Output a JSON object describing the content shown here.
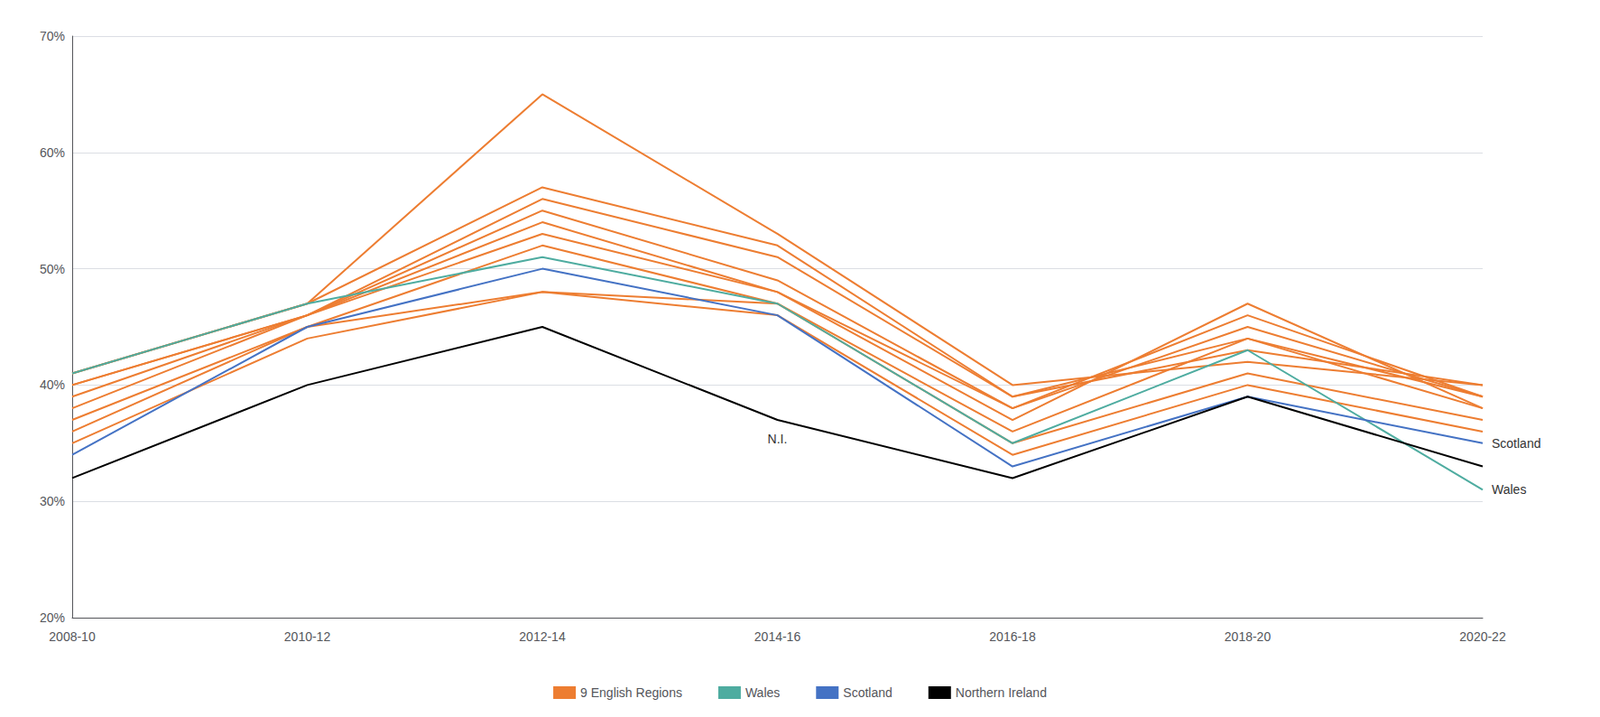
{
  "chart_data": {
    "type": "line",
    "categories": [
      "2008-10",
      "2010-12",
      "2012-14",
      "2014-16",
      "2016-18",
      "2018-20",
      "2020-22"
    ],
    "series": [
      {
        "name": "9 English Regions",
        "color": "#ED7D31",
        "values": [
          0.41,
          0.47,
          0.65,
          0.53,
          0.4,
          0.42,
          0.4
        ]
      },
      {
        "name": "9 English Regions",
        "color": "#ED7D31",
        "values": [
          0.41,
          0.47,
          0.57,
          0.52,
          0.39,
          0.43,
          0.4
        ]
      },
      {
        "name": "9 English Regions",
        "color": "#ED7D31",
        "values": [
          0.4,
          0.46,
          0.56,
          0.51,
          0.39,
          0.44,
          0.39
        ]
      },
      {
        "name": "9 English Regions",
        "color": "#ED7D31",
        "values": [
          0.4,
          0.46,
          0.55,
          0.49,
          0.38,
          0.45,
          0.39
        ]
      },
      {
        "name": "9 English Regions",
        "color": "#ED7D31",
        "values": [
          0.39,
          0.46,
          0.54,
          0.48,
          0.38,
          0.46,
          0.39
        ]
      },
      {
        "name": "9 English Regions",
        "color": "#ED7D31",
        "values": [
          0.38,
          0.46,
          0.53,
          0.48,
          0.37,
          0.47,
          0.38
        ]
      },
      {
        "name": "9 English Regions",
        "color": "#ED7D31",
        "values": [
          0.37,
          0.45,
          0.52,
          0.47,
          0.36,
          0.44,
          0.38
        ]
      },
      {
        "name": "9 English Regions",
        "color": "#ED7D31",
        "values": [
          0.36,
          0.45,
          0.48,
          0.47,
          0.35,
          0.41,
          0.37
        ]
      },
      {
        "name": "9 English Regions",
        "color": "#ED7D31",
        "values": [
          0.35,
          0.44,
          0.48,
          0.46,
          0.34,
          0.4,
          0.36
        ]
      },
      {
        "name": "Wales",
        "color": "#4EACA0",
        "values": [
          0.41,
          0.47,
          0.51,
          0.47,
          0.35,
          0.43,
          0.31
        ]
      },
      {
        "name": "Scotland",
        "color": "#4472C4",
        "values": [
          0.34,
          0.45,
          0.5,
          0.46,
          0.33,
          0.39,
          0.35
        ]
      },
      {
        "name": "Northern Ireland",
        "color": "#000000",
        "values": [
          0.32,
          0.4,
          0.45,
          0.37,
          0.32,
          0.39,
          0.33
        ]
      }
    ],
    "ylim": [
      0.2,
      0.7
    ],
    "yticks": [
      {
        "value": 0.2,
        "label": "20%"
      },
      {
        "value": 0.3,
        "label": "30%"
      },
      {
        "value": 0.4,
        "label": "40%"
      },
      {
        "value": 0.5,
        "label": "50%"
      },
      {
        "value": 0.6,
        "label": "60%"
      },
      {
        "value": 0.7,
        "label": "70%"
      }
    ],
    "grid": true,
    "legend": "bottom",
    "annotations": [
      {
        "text": "N.I.",
        "series": "Northern Ireland",
        "category": "2014-16"
      },
      {
        "text": "Scotland",
        "series": "Scotland",
        "category": "2020-22"
      },
      {
        "text": "Wales",
        "series": "Wales",
        "category": "2020-22"
      }
    ]
  }
}
